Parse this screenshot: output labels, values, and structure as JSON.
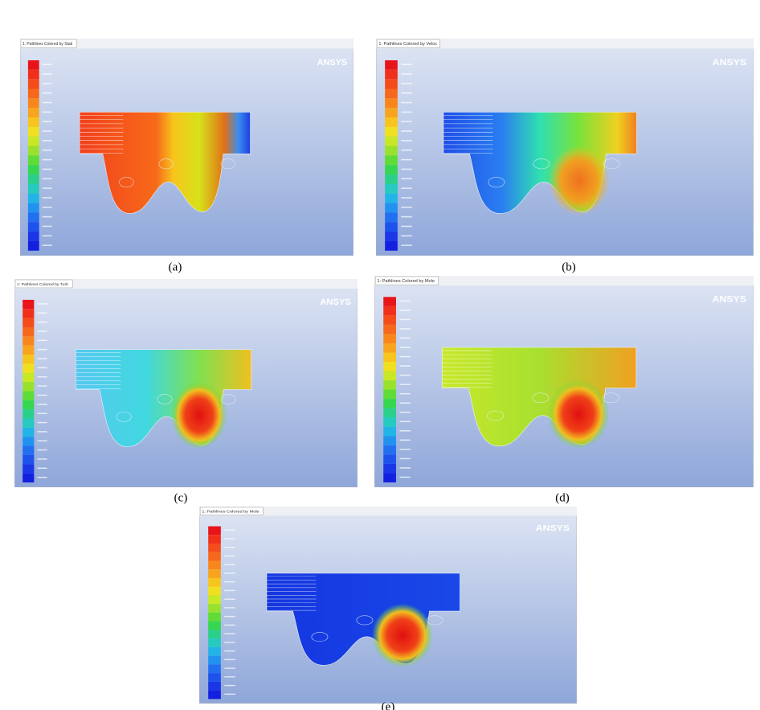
{
  "panels": [
    {
      "tab": "1: Pathlines Colored by Stati",
      "brand": "ANSYS",
      "label": "(a)"
    },
    {
      "tab": "1: Pathlines Colored by Veloc",
      "brand": "ANSYS",
      "label": "(b)"
    },
    {
      "tab": "1: Pathlines Colored by Turb",
      "brand": "ANSYS",
      "label": "(c)"
    },
    {
      "tab": "1: Pathlines Colored by Mole",
      "brand": "ANSYS",
      "label": "(d)"
    },
    {
      "tab": "1: Pathlines Colored by Mole",
      "brand": "ANSYS",
      "label": "(e)"
    }
  ]
}
